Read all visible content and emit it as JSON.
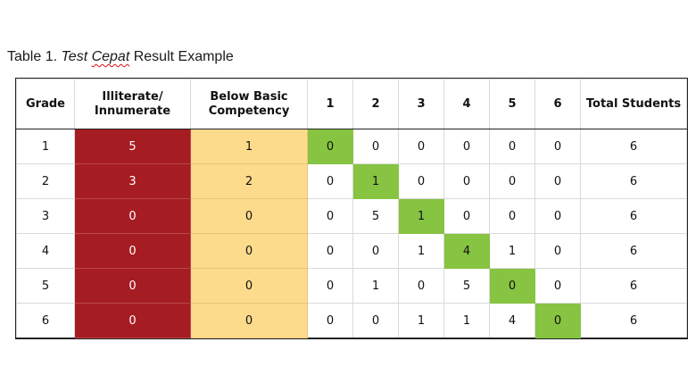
{
  "caption": {
    "prefix": "Table 1. ",
    "italic_1": "Test ",
    "italic_2": "Cepat",
    "suffix": " Result Example"
  },
  "table": {
    "headers": [
      "Grade",
      "Illiterate/\nInnumerate",
      "Below Basic\nCompetency",
      "1",
      "2",
      "3",
      "4",
      "5",
      "6",
      "Total Students"
    ],
    "rows": [
      [
        "1",
        "5",
        "1",
        "0",
        "0",
        "0",
        "0",
        "0",
        "0",
        "6"
      ],
      [
        "2",
        "3",
        "2",
        "0",
        "1",
        "0",
        "0",
        "0",
        "0",
        "6"
      ],
      [
        "3",
        "0",
        "0",
        "0",
        "5",
        "1",
        "0",
        "0",
        "0",
        "6"
      ],
      [
        "4",
        "0",
        "0",
        "0",
        "0",
        "1",
        "4",
        "1",
        "0",
        "6"
      ],
      [
        "5",
        "0",
        "0",
        "0",
        "1",
        "0",
        "5",
        "0",
        "0",
        "6"
      ],
      [
        "6",
        "0",
        "0",
        "0",
        "0",
        "1",
        "1",
        "4",
        "0",
        "6"
      ]
    ]
  },
  "colors": {
    "illiterate": "#a61c23",
    "below_basic": "#fddb8c",
    "grade_match": "#86c441"
  }
}
